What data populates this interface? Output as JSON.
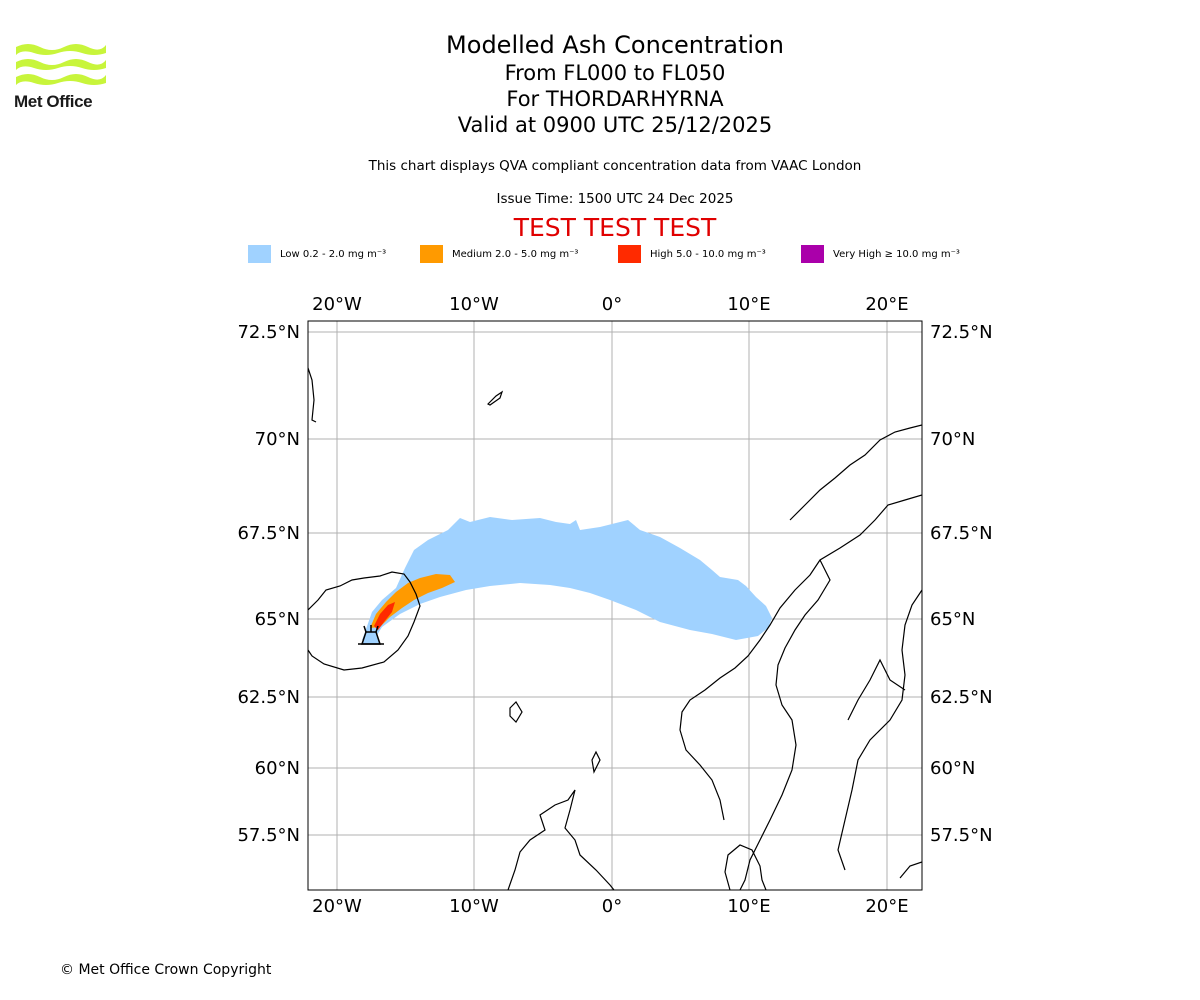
{
  "logo": {
    "text": "Met Office",
    "color": "#c8f53b",
    "icon": "met-office-waves-icon"
  },
  "title": {
    "main": "Modelled Ash Concentration",
    "levels": "From FL000 to FL050",
    "volcano": "For THORDARHYRNA",
    "valid": "Valid at 0900 UTC 25/12/2025"
  },
  "subtitle": {
    "info": "This chart displays QVA compliant concentration data from VAAC London",
    "issue_time": "Issue Time: 1500 UTC 24 Dec 2025"
  },
  "test_banner": "TEST TEST TEST",
  "legend": [
    {
      "label": "Low 0.2 - 2.0 mg m⁻³",
      "color": "#a0d2ff"
    },
    {
      "label": "Medium 2.0 - 5.0 mg m⁻³",
      "color": "#ff9a00"
    },
    {
      "label": "High 5.0 - 10.0 mg m⁻³",
      "color": "#ff2a00"
    },
    {
      "label": "Very High ≥ 10.0 mg m⁻³",
      "color": "#aa00aa"
    }
  ],
  "map": {
    "lon_labels": [
      "20°W",
      "10°W",
      "0°",
      "10°E",
      "20°E"
    ],
    "lat_labels": [
      "72.5°N",
      "70°N",
      "67.5°N",
      "65°N",
      "62.5°N",
      "60°N",
      "57.5°N"
    ],
    "volcano_marker": "volcano-icon",
    "grid_color": "#b0b0b0"
  },
  "copyright": "© Met Office Crown Copyright"
}
